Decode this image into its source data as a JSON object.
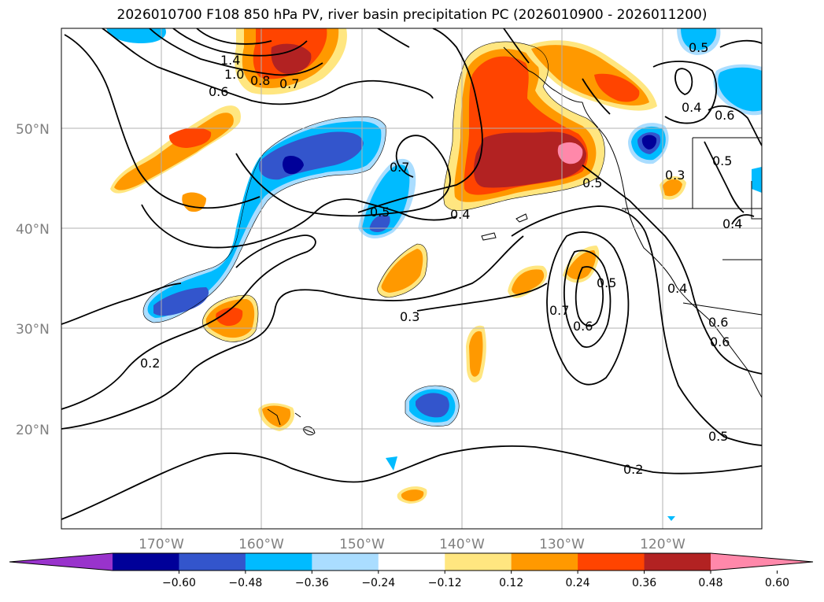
{
  "title": "2026010700 F108 850 hPa PV, river basin precipitation PC (2026010900 - 2026011200)",
  "map": {
    "lat_labels": [
      "50°N",
      "40°N",
      "30°N",
      "20°N"
    ],
    "lon_labels": [
      "170°W",
      "160°W",
      "150°W",
      "140°W",
      "130°W",
      "120°W"
    ],
    "gridline_color": "#b0b0b0"
  },
  "contour_labels": [
    "1.4",
    "1.0",
    "0.8",
    "0.7",
    "0.6",
    "0.7",
    "0.5",
    "0.4",
    "0.3",
    "0.2",
    "0.7",
    "0.6",
    "0.5",
    "0.5",
    "0.5",
    "0.4",
    "0.4",
    "0.2",
    "0.5",
    "0.5",
    "0.6",
    "0.6",
    "0.4",
    "0.6",
    "0.3"
  ],
  "colorbar": {
    "ticks": [
      "−0.60",
      "−0.48",
      "−0.36",
      "−0.24",
      "−0.12",
      "0.12",
      "0.24",
      "0.36",
      "0.48",
      "0.60"
    ],
    "colors": [
      "#9933cc",
      "#000099",
      "#3355cc",
      "#00bbff",
      "#aaddff",
      "#ffffff",
      "#ffe680",
      "#ff9900",
      "#ff4400",
      "#b22222",
      "#ff88aa"
    ]
  }
}
